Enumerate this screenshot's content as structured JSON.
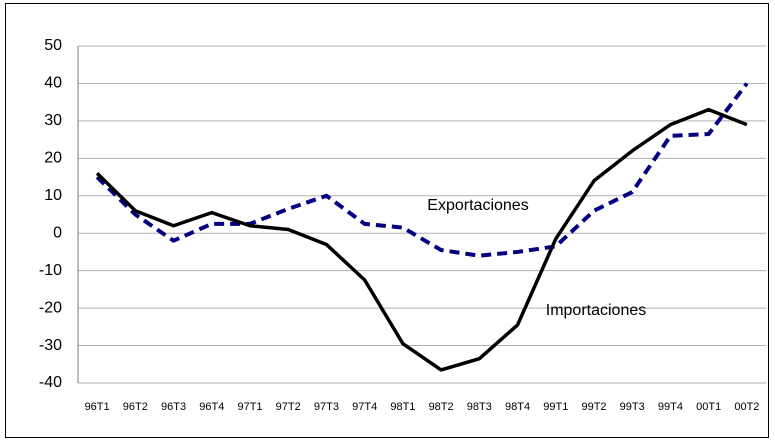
{
  "chart_data": {
    "type": "line",
    "categories": [
      "96T1",
      "96T2",
      "96T3",
      "96T4",
      "97T1",
      "97T2",
      "97T3",
      "97T4",
      "98T1",
      "98T2",
      "98T3",
      "98T4",
      "99T1",
      "99T2",
      "99T3",
      "99T4",
      "00T1",
      "00T2"
    ],
    "series": [
      {
        "name": "Exportaciones",
        "color": "#000080",
        "line_style": "dashed",
        "values": [
          15,
          5,
          -2,
          2.5,
          2.5,
          6.5,
          10,
          2.5,
          1.5,
          -4.5,
          -6,
          -5,
          -3.5,
          6,
          11,
          26,
          26.5,
          40
        ]
      },
      {
        "name": "Importaciones",
        "color": "#000000",
        "line_style": "solid",
        "values": [
          16,
          6,
          2,
          5.5,
          2,
          1,
          -3,
          -12.5,
          -29.5,
          -36.5,
          -33.5,
          -24.5,
          -1.5,
          14,
          22,
          29,
          33,
          29
        ]
      }
    ],
    "ylim": [
      -40,
      50
    ],
    "yticks": [
      -40,
      -30,
      -20,
      -10,
      0,
      10,
      20,
      30,
      40,
      50
    ],
    "grid": true
  }
}
